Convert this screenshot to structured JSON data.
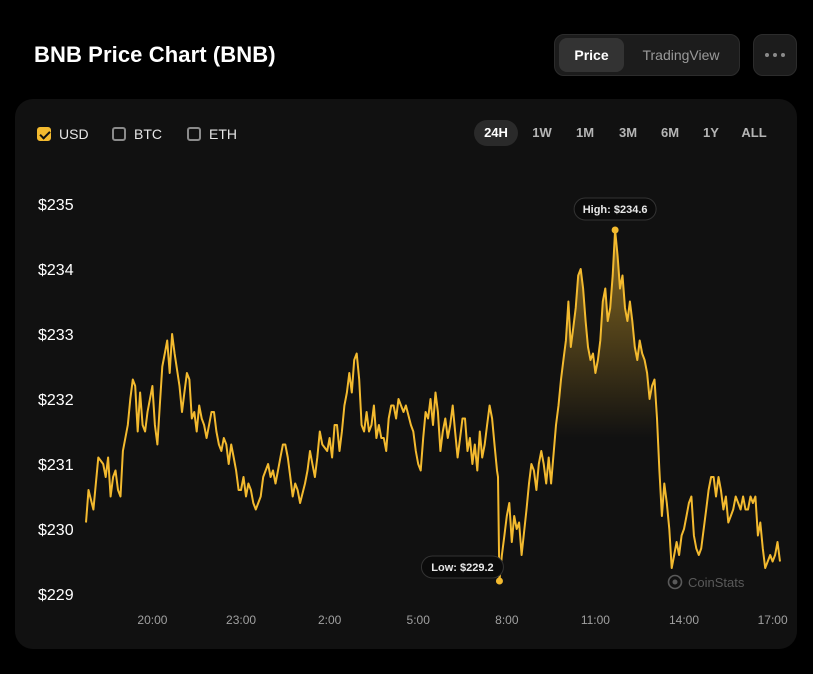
{
  "title": "BNB Price Chart (BNB)",
  "view_toggle": {
    "options": [
      "Price",
      "TradingView"
    ],
    "active": "Price"
  },
  "currencies": [
    {
      "label": "USD",
      "checked": true
    },
    {
      "label": "BTC",
      "checked": false
    },
    {
      "label": "ETH",
      "checked": false
    }
  ],
  "ranges": [
    "24H",
    "1W",
    "1M",
    "3M",
    "6M",
    "1Y",
    "ALL"
  ],
  "active_range": "24H",
  "watermark": "CoinStats",
  "colors": {
    "line": "#f3ba2f",
    "background": "#111111",
    "accent_checkbox": "#f3ba2f"
  },
  "chart_data": {
    "type": "area",
    "xlim": [
      "17:45",
      "17:15"
    ],
    "ylim": [
      229,
      235
    ],
    "yticks": [
      "$235",
      "$234",
      "$233",
      "$232",
      "$231",
      "$230",
      "$229"
    ],
    "xticks": [
      "20:00",
      "23:00",
      "2:00",
      "5:00",
      "8:00",
      "11:00",
      "14:00",
      "17:00"
    ],
    "high": {
      "label": "High: $234.6",
      "time": "11:40",
      "value": 234.6
    },
    "low": {
      "label": "Low: $229.2",
      "time": "7:45",
      "value": 229.2
    },
    "series": [
      {
        "values": [
          [
            "17:45",
            230.1
          ],
          [
            "17:50",
            230.6
          ],
          [
            "18:00",
            230.3
          ],
          [
            "18:10",
            231.1
          ],
          [
            "18:20",
            231.0
          ],
          [
            "18:25",
            230.8
          ],
          [
            "18:30",
            231.1
          ],
          [
            "18:35",
            230.5
          ],
          [
            "18:40",
            230.8
          ],
          [
            "18:45",
            230.9
          ],
          [
            "18:50",
            230.6
          ],
          [
            "18:55",
            230.5
          ],
          [
            "19:00",
            231.2
          ],
          [
            "19:10",
            231.6
          ],
          [
            "19:15",
            232.0
          ],
          [
            "19:20",
            232.3
          ],
          [
            "19:25",
            232.2
          ],
          [
            "19:30",
            231.5
          ],
          [
            "19:35",
            232.1
          ],
          [
            "19:40",
            231.6
          ],
          [
            "19:45",
            231.5
          ],
          [
            "19:50",
            231.8
          ],
          [
            "20:00",
            232.2
          ],
          [
            "20:05",
            231.6
          ],
          [
            "20:10",
            231.3
          ],
          [
            "20:15",
            231.9
          ],
          [
            "20:20",
            232.5
          ],
          [
            "20:25",
            232.7
          ],
          [
            "20:30",
            232.9
          ],
          [
            "20:35",
            232.4
          ],
          [
            "20:40",
            233.0
          ],
          [
            "20:45",
            232.7
          ],
          [
            "20:55",
            232.2
          ],
          [
            "21:00",
            231.8
          ],
          [
            "21:05",
            232.1
          ],
          [
            "21:10",
            232.4
          ],
          [
            "21:15",
            232.3
          ],
          [
            "21:20",
            231.7
          ],
          [
            "21:25",
            231.8
          ],
          [
            "21:30",
            231.5
          ],
          [
            "21:35",
            231.9
          ],
          [
            "21:40",
            231.7
          ],
          [
            "21:45",
            231.6
          ],
          [
            "21:50",
            231.4
          ],
          [
            "22:00",
            231.8
          ],
          [
            "22:05",
            231.8
          ],
          [
            "22:10",
            231.5
          ],
          [
            "22:15",
            231.3
          ],
          [
            "22:20",
            231.2
          ],
          [
            "22:25",
            231.4
          ],
          [
            "22:30",
            231.3
          ],
          [
            "22:35",
            231.0
          ],
          [
            "22:40",
            231.3
          ],
          [
            "22:45",
            231.1
          ],
          [
            "22:50",
            230.9
          ],
          [
            "22:55",
            230.6
          ],
          [
            "23:00",
            230.6
          ],
          [
            "23:05",
            230.8
          ],
          [
            "23:10",
            230.5
          ],
          [
            "23:15",
            230.7
          ],
          [
            "23:20",
            230.6
          ],
          [
            "23:25",
            230.4
          ],
          [
            "23:30",
            230.3
          ],
          [
            "23:40",
            230.5
          ],
          [
            "23:45",
            230.8
          ],
          [
            "23:55",
            231.0
          ],
          [
            "0:00",
            230.8
          ],
          [
            "0:05",
            230.9
          ],
          [
            "0:10",
            230.7
          ],
          [
            "0:15",
            230.9
          ],
          [
            "0:20",
            231.1
          ],
          [
            "0:25",
            231.3
          ],
          [
            "0:30",
            231.3
          ],
          [
            "0:35",
            231.1
          ],
          [
            "0:40",
            230.8
          ],
          [
            "0:45",
            230.5
          ],
          [
            "0:50",
            230.7
          ],
          [
            "0:55",
            230.6
          ],
          [
            "1:00",
            230.4
          ],
          [
            "1:10",
            230.7
          ],
          [
            "1:15",
            230.9
          ],
          [
            "1:20",
            231.2
          ],
          [
            "1:25",
            231.0
          ],
          [
            "1:30",
            230.8
          ],
          [
            "1:35",
            231.1
          ],
          [
            "1:40",
            231.5
          ],
          [
            "1:45",
            231.3
          ],
          [
            "1:55",
            231.2
          ],
          [
            "2:00",
            231.4
          ],
          [
            "2:05",
            231.1
          ],
          [
            "2:10",
            231.6
          ],
          [
            "2:15",
            231.6
          ],
          [
            "2:20",
            231.2
          ],
          [
            "2:25",
            231.5
          ],
          [
            "2:30",
            231.9
          ],
          [
            "2:35",
            232.1
          ],
          [
            "2:40",
            232.4
          ],
          [
            "2:45",
            232.1
          ],
          [
            "2:50",
            232.6
          ],
          [
            "2:55",
            232.7
          ],
          [
            "3:00",
            232.3
          ],
          [
            "3:05",
            231.6
          ],
          [
            "3:10",
            231.5
          ],
          [
            "3:15",
            231.8
          ],
          [
            "3:20",
            231.5
          ],
          [
            "3:25",
            231.6
          ],
          [
            "3:30",
            231.9
          ],
          [
            "3:35",
            231.4
          ],
          [
            "3:40",
            231.6
          ],
          [
            "3:45",
            231.4
          ],
          [
            "3:50",
            231.4
          ],
          [
            "3:55",
            231.2
          ],
          [
            "4:00",
            231.7
          ],
          [
            "4:05",
            231.9
          ],
          [
            "4:10",
            231.9
          ],
          [
            "4:15",
            231.7
          ],
          [
            "4:20",
            232.0
          ],
          [
            "4:25",
            231.9
          ],
          [
            "4:30",
            231.8
          ],
          [
            "4:35",
            231.9
          ],
          [
            "4:45",
            231.6
          ],
          [
            "4:50",
            231.5
          ],
          [
            "4:55",
            231.2
          ],
          [
            "5:00",
            231.0
          ],
          [
            "5:05",
            230.9
          ],
          [
            "5:10",
            231.4
          ],
          [
            "5:15",
            231.8
          ],
          [
            "5:20",
            231.7
          ],
          [
            "5:25",
            232.0
          ],
          [
            "5:30",
            231.6
          ],
          [
            "5:35",
            232.1
          ],
          [
            "5:40",
            231.8
          ],
          [
            "5:45",
            231.2
          ],
          [
            "5:50",
            231.5
          ],
          [
            "5:55",
            231.7
          ],
          [
            "6:00",
            231.4
          ],
          [
            "6:05",
            231.6
          ],
          [
            "6:10",
            231.9
          ],
          [
            "6:15",
            231.5
          ],
          [
            "6:20",
            231.1
          ],
          [
            "6:25",
            231.4
          ],
          [
            "6:30",
            231.7
          ],
          [
            "6:35",
            231.7
          ],
          [
            "6:40",
            231.2
          ],
          [
            "6:45",
            231.4
          ],
          [
            "6:50",
            231.0
          ],
          [
            "6:55",
            231.3
          ],
          [
            "7:00",
            230.9
          ],
          [
            "7:05",
            231.5
          ],
          [
            "7:10",
            231.1
          ],
          [
            "7:15",
            231.3
          ],
          [
            "7:20",
            231.6
          ],
          [
            "7:25",
            231.9
          ],
          [
            "7:30",
            231.7
          ],
          [
            "7:35",
            231.3
          ],
          [
            "7:40",
            230.9
          ],
          [
            "7:42",
            230.8
          ],
          [
            "7:45",
            229.2
          ],
          [
            "7:50",
            229.6
          ],
          [
            "7:55",
            229.9
          ],
          [
            "8:00",
            230.2
          ],
          [
            "8:05",
            230.4
          ],
          [
            "8:10",
            229.8
          ],
          [
            "8:15",
            230.2
          ],
          [
            "8:20",
            230.0
          ],
          [
            "8:25",
            230.1
          ],
          [
            "8:30",
            229.6
          ],
          [
            "8:40",
            230.3
          ],
          [
            "8:45",
            230.7
          ],
          [
            "8:50",
            231.0
          ],
          [
            "8:55",
            230.9
          ],
          [
            "9:00",
            230.6
          ],
          [
            "9:05",
            231.0
          ],
          [
            "9:10",
            231.2
          ],
          [
            "9:15",
            231.0
          ],
          [
            "9:20",
            230.7
          ],
          [
            "9:25",
            231.1
          ],
          [
            "9:30",
            230.7
          ],
          [
            "9:40",
            231.6
          ],
          [
            "9:45",
            231.9
          ],
          [
            "9:50",
            232.3
          ],
          [
            "9:55",
            232.6
          ],
          [
            "10:00",
            232.9
          ],
          [
            "10:05",
            233.5
          ],
          [
            "10:10",
            232.8
          ],
          [
            "10:15",
            233.1
          ],
          [
            "10:20",
            233.4
          ],
          [
            "10:25",
            233.9
          ],
          [
            "10:30",
            234.0
          ],
          [
            "10:35",
            233.7
          ],
          [
            "10:40",
            233.2
          ],
          [
            "10:45",
            232.8
          ],
          [
            "10:50",
            232.6
          ],
          [
            "10:55",
            232.7
          ],
          [
            "11:00",
            232.4
          ],
          [
            "11:05",
            232.6
          ],
          [
            "11:10",
            232.9
          ],
          [
            "11:15",
            233.5
          ],
          [
            "11:20",
            233.7
          ],
          [
            "11:25",
            233.2
          ],
          [
            "11:30",
            233.4
          ],
          [
            "11:35",
            233.9
          ],
          [
            "11:40",
            234.6
          ],
          [
            "11:45",
            234.2
          ],
          [
            "11:50",
            233.7
          ],
          [
            "11:55",
            233.9
          ],
          [
            "12:00",
            233.4
          ],
          [
            "12:05",
            233.2
          ],
          [
            "12:10",
            233.5
          ],
          [
            "12:15",
            233.2
          ],
          [
            "12:20",
            232.8
          ],
          [
            "12:25",
            232.6
          ],
          [
            "12:30",
            232.9
          ],
          [
            "12:35",
            232.7
          ],
          [
            "12:40",
            232.6
          ],
          [
            "12:45",
            232.4
          ],
          [
            "12:50",
            232.0
          ],
          [
            "12:55",
            232.2
          ],
          [
            "13:00",
            232.3
          ],
          [
            "13:05",
            231.7
          ],
          [
            "13:10",
            230.9
          ],
          [
            "13:15",
            230.2
          ],
          [
            "13:20",
            230.7
          ],
          [
            "13:25",
            230.4
          ],
          [
            "13:30",
            230.0
          ],
          [
            "13:35",
            229.4
          ],
          [
            "13:40",
            229.6
          ],
          [
            "13:45",
            229.8
          ],
          [
            "13:50",
            229.6
          ],
          [
            "13:55",
            229.9
          ],
          [
            "14:00",
            230.0
          ],
          [
            "14:05",
            230.2
          ],
          [
            "14:10",
            230.4
          ],
          [
            "14:15",
            230.5
          ],
          [
            "14:20",
            229.9
          ],
          [
            "14:25",
            229.7
          ],
          [
            "14:30",
            229.6
          ],
          [
            "14:35",
            229.7
          ],
          [
            "14:40",
            230.0
          ],
          [
            "14:45",
            230.3
          ],
          [
            "14:50",
            230.6
          ],
          [
            "14:55",
            230.8
          ],
          [
            "15:00",
            230.8
          ],
          [
            "15:05",
            230.5
          ],
          [
            "15:10",
            230.8
          ],
          [
            "15:15",
            230.6
          ],
          [
            "15:20",
            230.3
          ],
          [
            "15:25",
            230.5
          ],
          [
            "15:30",
            230.1
          ],
          [
            "15:35",
            230.2
          ],
          [
            "15:40",
            230.3
          ],
          [
            "15:45",
            230.5
          ],
          [
            "15:50",
            230.4
          ],
          [
            "15:55",
            230.3
          ],
          [
            "16:00",
            230.5
          ],
          [
            "16:05",
            230.3
          ],
          [
            "16:10",
            230.3
          ],
          [
            "16:15",
            230.5
          ],
          [
            "16:20",
            230.4
          ],
          [
            "16:25",
            230.5
          ],
          [
            "16:30",
            229.9
          ],
          [
            "16:35",
            230.1
          ],
          [
            "16:40",
            229.7
          ],
          [
            "16:45",
            229.4
          ],
          [
            "16:50",
            229.5
          ],
          [
            "16:55",
            229.6
          ],
          [
            "17:00",
            229.5
          ],
          [
            "17:05",
            229.6
          ],
          [
            "17:10",
            229.8
          ],
          [
            "17:15",
            229.5
          ]
        ]
      }
    ]
  }
}
